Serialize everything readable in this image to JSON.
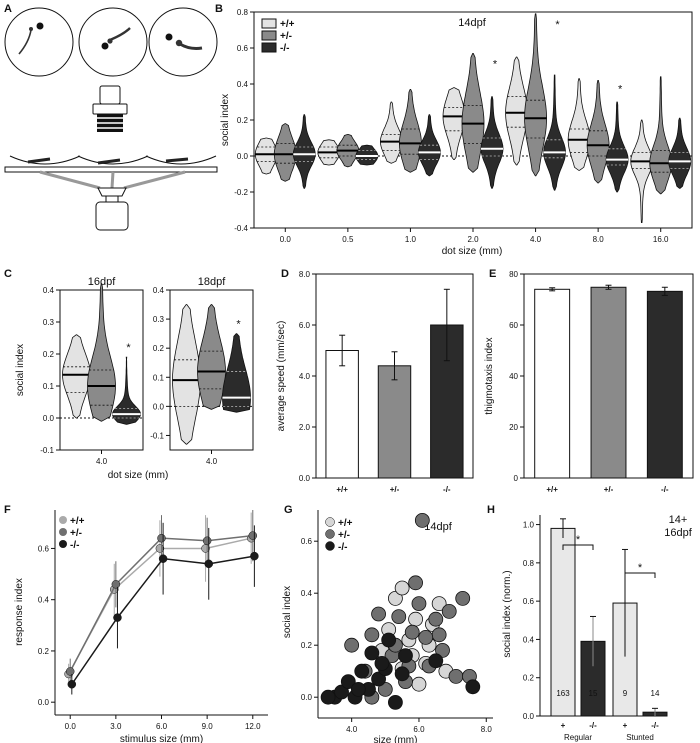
{
  "colors": {
    "wt": "#e3e3e3",
    "het": "#8a8a8a",
    "mut": "#2b2b2b",
    "axis": "#111111"
  },
  "panel_labels": [
    "A",
    "B",
    "C",
    "D",
    "E",
    "F",
    "G",
    "H"
  ],
  "genotypes": [
    "+/+",
    "+/-",
    "-/-"
  ],
  "chart_data": [
    {
      "id": "B",
      "type": "violin",
      "title": "14dpf",
      "xlabel": "dot size (mm)",
      "ylabel": "social index",
      "ylim": [
        -0.4,
        0.8
      ],
      "yticks": [
        "-0.4",
        "-0.2",
        "0.0",
        "0.2",
        "0.4",
        "0.6",
        "0.8"
      ],
      "categories": [
        "0.0",
        "0.5",
        "1.0",
        "2.0",
        "4.0",
        "8.0",
        "16.0"
      ],
      "legend": [
        "+/+",
        "+/-",
        "-/-"
      ],
      "legend_position": "top-left",
      "series": [
        {
          "name": "+/+",
          "median": [
            0.01,
            0.02,
            0.08,
            0.22,
            0.24,
            0.09,
            -0.03
          ],
          "q1": [
            -0.03,
            -0.01,
            0.03,
            0.14,
            0.16,
            0.02,
            -0.07
          ],
          "q3": [
            0.05,
            0.05,
            0.12,
            0.27,
            0.33,
            0.15,
            0.02
          ],
          "min": [
            -0.1,
            -0.05,
            -0.04,
            -0.02,
            -0.05,
            -0.08,
            -0.37
          ],
          "max": [
            0.1,
            0.09,
            0.3,
            0.38,
            0.55,
            0.43,
            0.2
          ]
        },
        {
          "name": "+/-",
          "median": [
            0.01,
            0.03,
            0.07,
            0.18,
            0.21,
            0.06,
            -0.04
          ],
          "q1": [
            -0.04,
            0.0,
            0.01,
            0.07,
            0.1,
            0.0,
            -0.09
          ],
          "q3": [
            0.07,
            0.06,
            0.15,
            0.28,
            0.31,
            0.14,
            0.03
          ],
          "min": [
            -0.14,
            -0.06,
            -0.09,
            -0.09,
            -0.11,
            -0.15,
            -0.21
          ],
          "max": [
            0.18,
            0.12,
            0.37,
            0.57,
            0.79,
            0.42,
            0.44
          ]
        },
        {
          "name": "-/-",
          "median": [
            0.01,
            0.0,
            0.02,
            0.04,
            0.02,
            -0.02,
            -0.03
          ],
          "q1": [
            -0.03,
            -0.02,
            -0.02,
            0.0,
            -0.01,
            -0.05,
            -0.07
          ],
          "q3": [
            0.05,
            0.03,
            0.06,
            0.1,
            0.09,
            0.04,
            0.02
          ],
          "min": [
            -0.18,
            -0.05,
            -0.11,
            -0.18,
            -0.19,
            -0.2,
            -0.18
          ],
          "max": [
            0.23,
            0.06,
            0.23,
            0.33,
            0.45,
            0.3,
            0.21
          ]
        }
      ],
      "significance": [
        "",
        "",
        "",
        "*",
        "*",
        "*",
        ""
      ]
    },
    {
      "id": "C1",
      "type": "violin",
      "title": "16dpf",
      "xlabel": "dot size (mm)",
      "ylabel": "social index",
      "ylim": [
        -0.1,
        0.4
      ],
      "yticks": [
        "-0.1",
        "0.0",
        "0.1",
        "0.2",
        "0.3",
        "0.4"
      ],
      "categories": [
        "4.0"
      ],
      "series": [
        {
          "name": "+/+",
          "median": [
            0.135
          ],
          "q1": [
            0.08
          ],
          "q3": [
            0.16
          ],
          "min": [
            0.0
          ],
          "max": [
            0.26
          ]
        },
        {
          "name": "+/-",
          "median": [
            0.1
          ],
          "q1": [
            0.04
          ],
          "q3": [
            0.15
          ],
          "min": [
            -0.01
          ],
          "max": [
            0.42
          ]
        },
        {
          "name": "-/-",
          "median": [
            0.012
          ],
          "q1": [
            0.0
          ],
          "q3": [
            0.03
          ],
          "min": [
            -0.02
          ],
          "max": [
            0.19
          ]
        }
      ],
      "significance": [
        "*"
      ]
    },
    {
      "id": "C2",
      "type": "violin",
      "title": "18dpf",
      "xlabel": "",
      "ylabel": "",
      "ylim": [
        -0.15,
        0.4
      ],
      "yticks": [
        "-0.1",
        "0.0",
        "0.1",
        "0.2",
        "0.3",
        "0.4"
      ],
      "categories": [
        "4.0"
      ],
      "series": [
        {
          "name": "+/+",
          "median": [
            0.09
          ],
          "q1": [
            0.0
          ],
          "q3": [
            0.16
          ],
          "min": [
            -0.13
          ],
          "max": [
            0.35
          ]
        },
        {
          "name": "+/-",
          "median": [
            0.12
          ],
          "q1": [
            0.06
          ],
          "q3": [
            0.19
          ],
          "min": [
            -0.01
          ],
          "max": [
            0.35
          ]
        },
        {
          "name": "-/-",
          "median": [
            0.03
          ],
          "q1": [
            0.0
          ],
          "q3": [
            0.12
          ],
          "min": [
            -0.02
          ],
          "max": [
            0.25
          ]
        }
      ],
      "significance": [
        "*"
      ]
    },
    {
      "id": "D",
      "type": "bar",
      "title": "",
      "ylabel": "average speed (mm/sec)",
      "ylim": [
        0,
        8
      ],
      "yticks": [
        "0.0",
        "2.0",
        "4.0",
        "6.0",
        "8.0"
      ],
      "categories": [
        "+/+",
        "+/-",
        "-/-"
      ],
      "values": [
        5.0,
        4.4,
        6.0
      ],
      "errors": [
        0.6,
        0.55,
        1.4
      ]
    },
    {
      "id": "E",
      "type": "bar",
      "title": "",
      "ylabel": "thigmotaxis index",
      "ylim": [
        0,
        80
      ],
      "yticks": [
        "0",
        "20",
        "40",
        "60",
        "80"
      ],
      "categories": [
        "+/+",
        "+/-",
        "-/-"
      ],
      "values": [
        74.0,
        74.8,
        73.2
      ],
      "errors": [
        0.6,
        0.8,
        1.6
      ]
    },
    {
      "id": "F",
      "type": "line",
      "xlabel": "stimulus size (mm)",
      "ylabel": "response index",
      "ylim": [
        -0.05,
        0.75
      ],
      "yticks": [
        "0.0",
        "0.2",
        "0.4",
        "0.6"
      ],
      "x": [
        0.0,
        3.0,
        6.0,
        9.0,
        12.0
      ],
      "xticks": [
        "0.0",
        "3.0",
        "6.0",
        "9.0",
        "12.0"
      ],
      "legend": [
        "+/+",
        "+/-",
        "-/-"
      ],
      "legend_position": "top-left",
      "series": [
        {
          "name": "+/+",
          "values": [
            0.11,
            0.44,
            0.6,
            0.6,
            0.64
          ],
          "errors": [
            0.04,
            0.1,
            0.11,
            0.13,
            0.1
          ]
        },
        {
          "name": "+/-",
          "values": [
            0.12,
            0.46,
            0.64,
            0.63,
            0.65
          ],
          "errors": [
            0.05,
            0.09,
            0.09,
            0.09,
            0.1
          ]
        },
        {
          "name": "-/-",
          "values": [
            0.07,
            0.33,
            0.56,
            0.54,
            0.57
          ],
          "errors": [
            0.04,
            0.12,
            0.14,
            0.14,
            0.12
          ]
        }
      ]
    },
    {
      "id": "G",
      "type": "scatter",
      "title": "14dpf",
      "xlabel": "size (mm)",
      "ylabel": "social index",
      "xlim": [
        3.0,
        8.2
      ],
      "ylim": [
        -0.08,
        0.72
      ],
      "xticks": [
        "4.0",
        "6.0",
        "8.0"
      ],
      "yticks": [
        "0.0",
        "0.2",
        "0.4",
        "0.6"
      ],
      "legend": [
        "+/+",
        "+/-",
        "-/-"
      ],
      "legend_position": "top-left",
      "series": [
        {
          "name": "+/+",
          "points": [
            [
              4.9,
              0.18
            ],
            [
              5.3,
              0.38
            ],
            [
              5.5,
              0.11
            ],
            [
              5.7,
              0.22
            ],
            [
              5.9,
              0.3
            ],
            [
              6.0,
              0.05
            ],
            [
              6.2,
              0.13
            ],
            [
              6.4,
              0.28
            ],
            [
              6.6,
              0.36
            ],
            [
              6.8,
              0.1
            ],
            [
              5.1,
              0.26
            ],
            [
              5.8,
              0.16
            ],
            [
              6.3,
              0.2
            ],
            [
              5.5,
              0.42
            ]
          ]
        },
        {
          "name": "+/-",
          "points": [
            [
              4.4,
              0.1
            ],
            [
              4.6,
              0.24
            ],
            [
              4.8,
              0.32
            ],
            [
              5.0,
              0.03
            ],
            [
              5.2,
              0.16
            ],
            [
              5.4,
              0.31
            ],
            [
              5.6,
              0.06
            ],
            [
              5.8,
              0.25
            ],
            [
              6.0,
              0.36
            ],
            [
              6.1,
              0.68
            ],
            [
              6.3,
              0.12
            ],
            [
              6.5,
              0.3
            ],
            [
              6.7,
              0.18
            ],
            [
              6.9,
              0.33
            ],
            [
              7.1,
              0.08
            ],
            [
              7.5,
              0.08
            ],
            [
              4.0,
              0.2
            ],
            [
              5.3,
              0.2
            ],
            [
              6.6,
              0.24
            ],
            [
              5.9,
              0.44
            ],
            [
              6.2,
              0.23
            ],
            [
              4.6,
              0.0
            ],
            [
              7.3,
              0.38
            ],
            [
              5.7,
              0.12
            ]
          ]
        },
        {
          "name": "-/-",
          "points": [
            [
              3.5,
              0.0
            ],
            [
              3.7,
              0.02
            ],
            [
              3.9,
              0.06
            ],
            [
              4.1,
              0.0
            ],
            [
              4.3,
              0.1
            ],
            [
              4.5,
              0.03
            ],
            [
              4.6,
              0.17
            ],
            [
              4.8,
              0.07
            ],
            [
              5.0,
              0.11
            ],
            [
              5.1,
              0.22
            ],
            [
              5.3,
              -0.02
            ],
            [
              5.5,
              0.09
            ],
            [
              4.2,
              0.03
            ],
            [
              7.6,
              0.04
            ],
            [
              3.3,
              0.0
            ],
            [
              4.9,
              0.13
            ],
            [
              5.6,
              0.16
            ],
            [
              6.5,
              0.14
            ]
          ]
        }
      ]
    },
    {
      "id": "H",
      "type": "bar",
      "title": "14+\n16dpf",
      "ylabel": "social index (norm.)",
      "ylim": [
        0,
        1.05
      ],
      "yticks": [
        "0.0",
        "0.2",
        "0.4",
        "0.6",
        "0.8",
        "1.0"
      ],
      "groups": [
        "Regular",
        "Stunted"
      ],
      "categories": [
        "+",
        "-/-",
        "+",
        "-/-"
      ],
      "values": [
        0.98,
        0.39,
        0.59,
        0.02
      ],
      "errors": [
        0.05,
        0.13,
        0.28,
        0.02
      ],
      "n": [
        "163",
        "15",
        "9",
        "14"
      ],
      "significance": [
        "*",
        "*"
      ]
    }
  ]
}
